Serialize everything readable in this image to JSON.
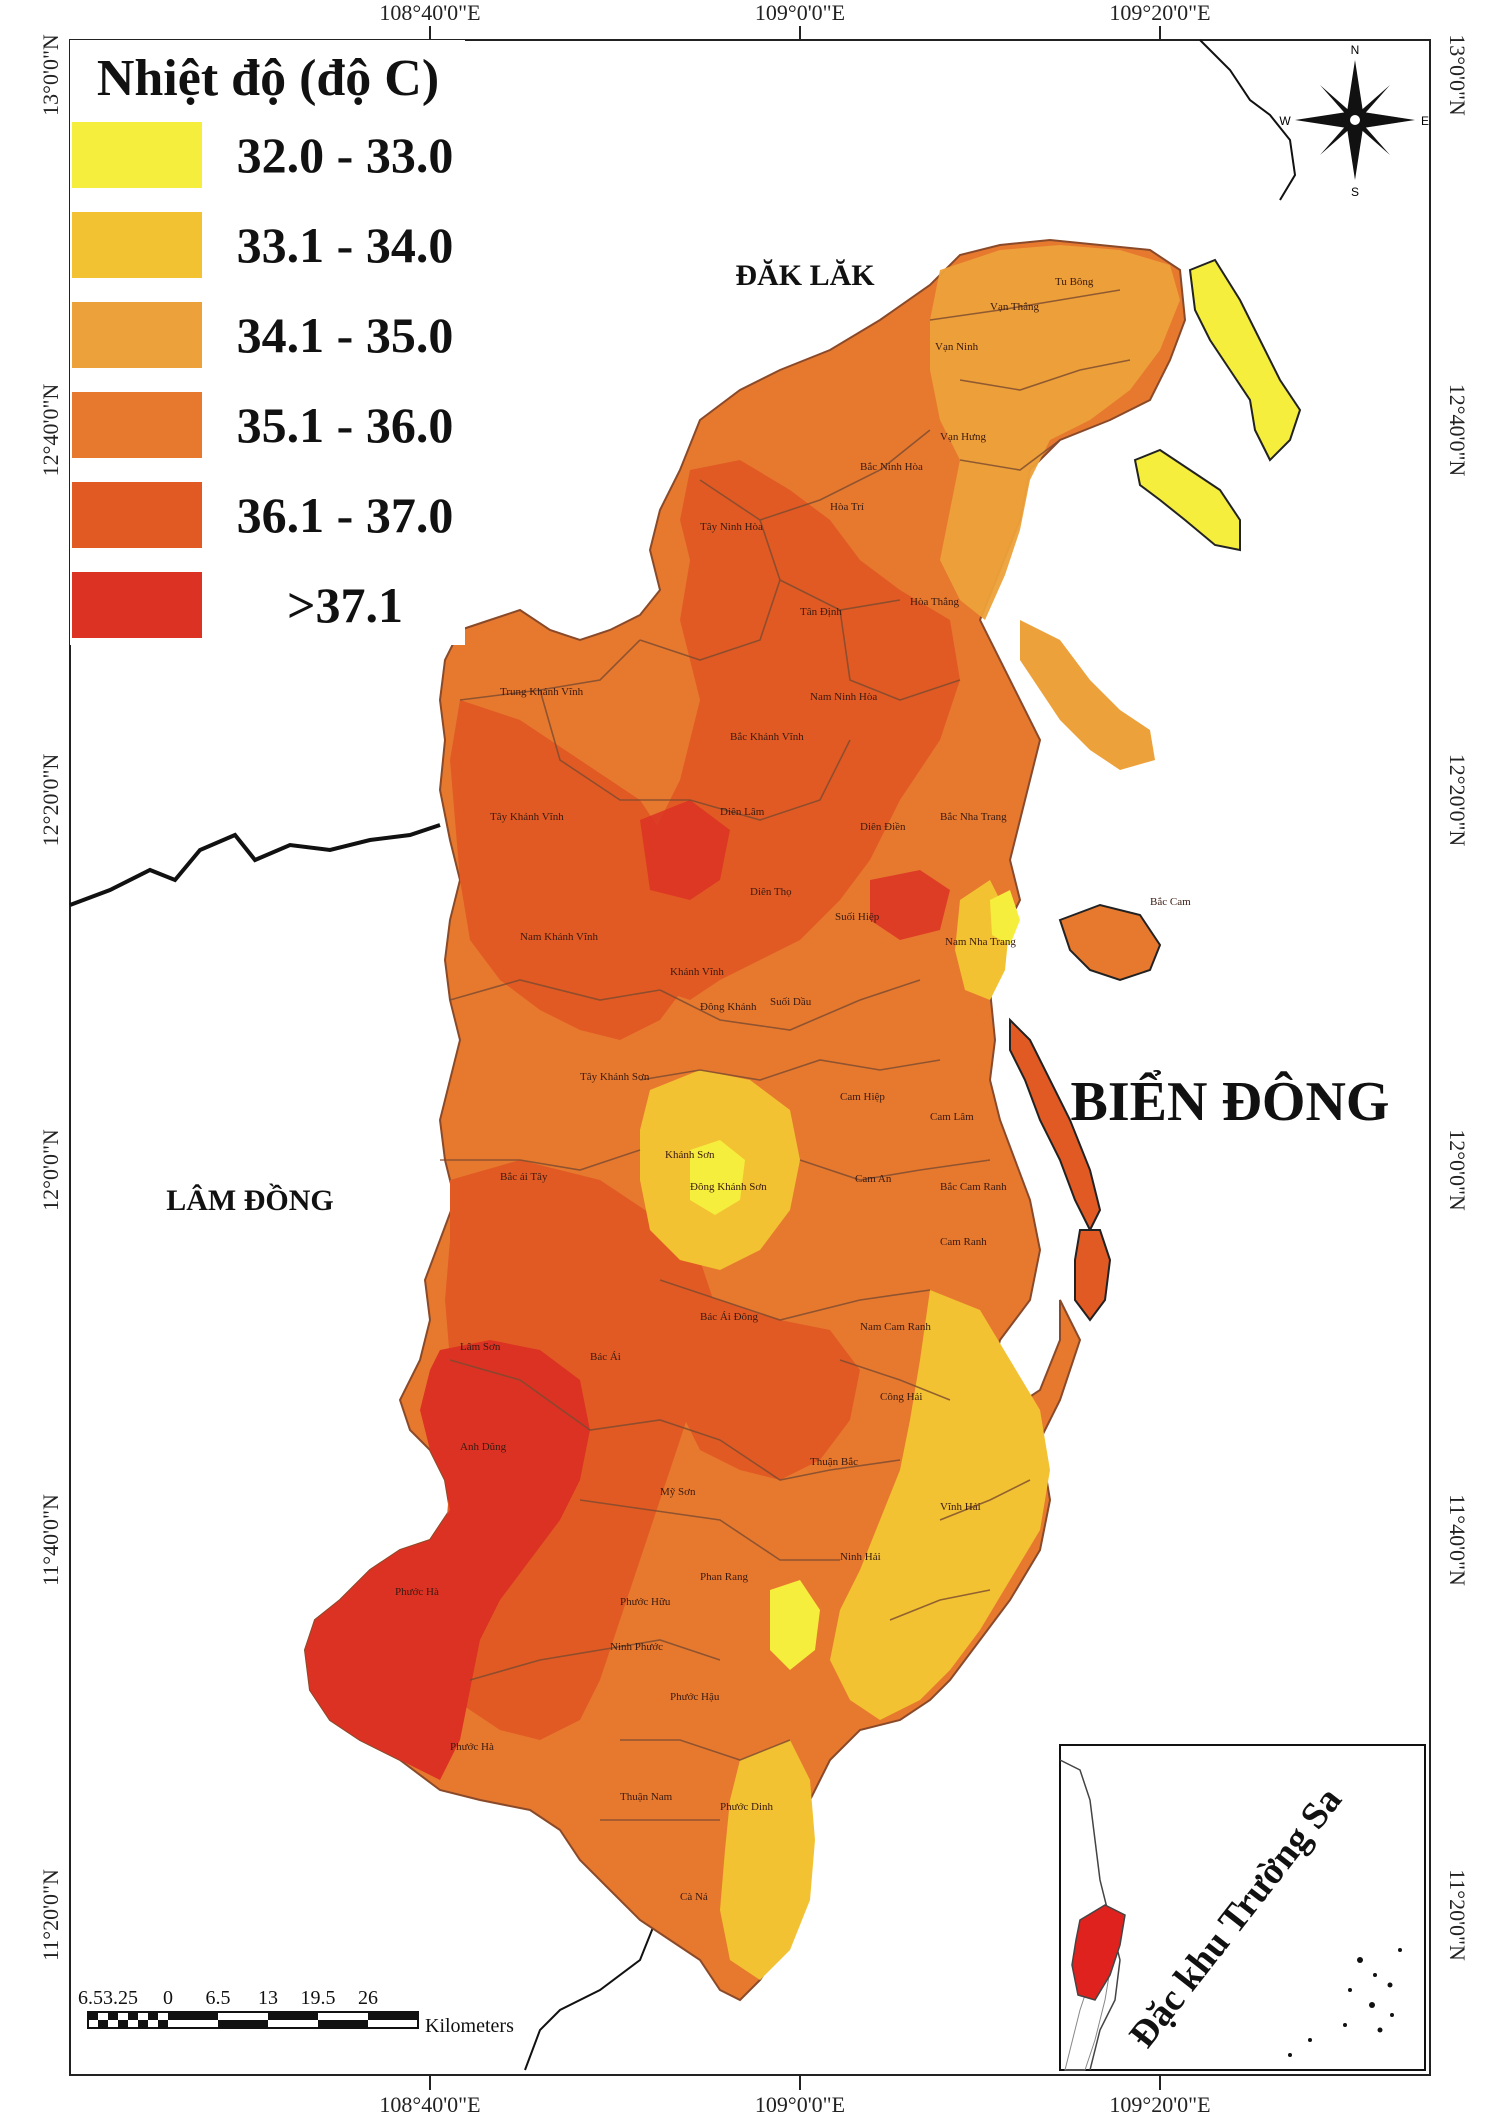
{
  "legend": {
    "title": "Nhiệt độ (độ C)",
    "classes": [
      {
        "label": "32.0 - 33.0",
        "color": "#f6ee3c"
      },
      {
        "label": "33.1 - 34.0",
        "color": "#f2c232"
      },
      {
        "label": "34.1 - 35.0",
        "color": "#eda13a"
      },
      {
        "label": "35.1 - 36.0",
        "color": "#e7792f"
      },
      {
        "label": "36.1 - 37.0",
        "color": "#e25a23"
      },
      {
        "label": ">37.1",
        "color": "#dc3223"
      }
    ]
  },
  "axes": {
    "top": [
      "108°40'0\"E",
      "109°0'0\"E",
      "109°20'0\"E"
    ],
    "bottom": [
      "108°40'0\"E",
      "109°0'0\"E",
      "109°20'0\"E"
    ],
    "left": [
      "13°0'0\"N",
      "12°40'0\"N",
      "12°20'0\"N",
      "12°0'0\"N",
      "11°40'0\"N",
      "11°20'0\"N"
    ],
    "right": [
      "13°0'0\"N",
      "12°40'0\"N",
      "12°20'0\"N",
      "12°0'0\"N",
      "11°40'0\"N",
      "11°20'0\"N"
    ]
  },
  "labels": {
    "dak_lak": "ĐĂK LĂK",
    "lam_dong": "LÂM ĐỒNG",
    "bien_dong": "BIỂN ĐÔNG"
  },
  "scale_bar": {
    "ticks": [
      "6.53.25",
      "0",
      "6.5",
      "13",
      "19.5",
      "26"
    ],
    "unit": "Kilometers"
  },
  "inset": {
    "label": "Đặc khu Trường Sa"
  },
  "compass": {
    "n": "N",
    "s": "S",
    "e": "E",
    "w": "W"
  },
  "colors": {
    "boundary": "#7a4a30",
    "outline": "#111111",
    "sea": "#ffffff"
  }
}
